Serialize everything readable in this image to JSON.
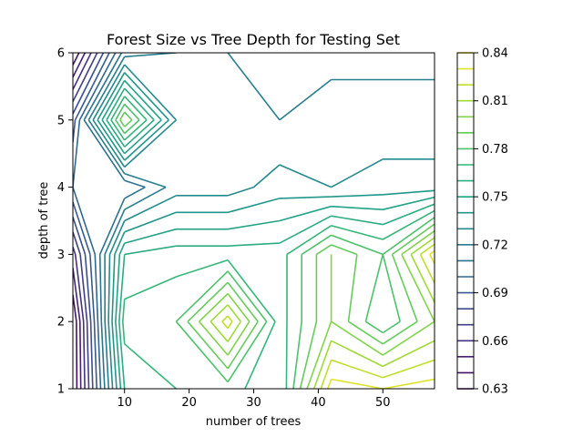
{
  "chart_data": {
    "type": "contour",
    "title": "Forest Size vs Tree Depth for Testing Set",
    "xlabel": "number of trees",
    "ylabel": "depth of tree",
    "xlim": [
      2,
      58
    ],
    "ylim": [
      1,
      6
    ],
    "x_ticks": [
      "10",
      "20",
      "30",
      "40",
      "50"
    ],
    "x_tick_values": [
      10,
      20,
      30,
      40,
      50
    ],
    "y_ticks": [
      "1",
      "2",
      "3",
      "4",
      "5",
      "6"
    ],
    "y_tick_values": [
      1,
      2,
      3,
      4,
      5,
      6
    ],
    "grid": false,
    "colormap": "viridis",
    "colorbar": {
      "min": 0.63,
      "max": 0.84,
      "levels": [
        0.63,
        0.64,
        0.65,
        0.66,
        0.67,
        0.68,
        0.69,
        0.7,
        0.71,
        0.72,
        0.73,
        0.74,
        0.75,
        0.76,
        0.77,
        0.78,
        0.79,
        0.8,
        0.81,
        0.82,
        0.83,
        0.84
      ],
      "tick_labels": [
        "0.63",
        "0.66",
        "0.69",
        "0.72",
        "0.75",
        "0.78",
        "0.81",
        "0.84"
      ],
      "tick_values": [
        0.63,
        0.66,
        0.69,
        0.72,
        0.75,
        0.78,
        0.81,
        0.84
      ]
    },
    "x": [
      2,
      10,
      18,
      26,
      34,
      42,
      50,
      58
    ],
    "y": [
      1,
      2,
      3,
      4,
      5,
      6
    ],
    "z": [
      [
        0.63,
        0.76,
        0.77,
        0.775,
        0.76,
        0.835,
        0.83,
        0.835
      ],
      [
        0.63,
        0.775,
        0.78,
        0.825,
        0.765,
        0.8,
        0.77,
        0.8
      ],
      [
        0.655,
        0.76,
        0.765,
        0.765,
        0.765,
        0.8,
        0.78,
        0.835
      ],
      [
        0.7,
        0.7,
        0.725,
        0.725,
        0.735,
        0.73,
        0.735,
        0.735
      ],
      [
        0.685,
        0.8,
        0.73,
        0.722,
        0.72,
        0.723,
        0.723,
        0.723
      ],
      [
        0.63,
        0.715,
        0.72,
        0.72,
        0.718,
        0.718,
        0.718,
        0.718
      ]
    ]
  }
}
